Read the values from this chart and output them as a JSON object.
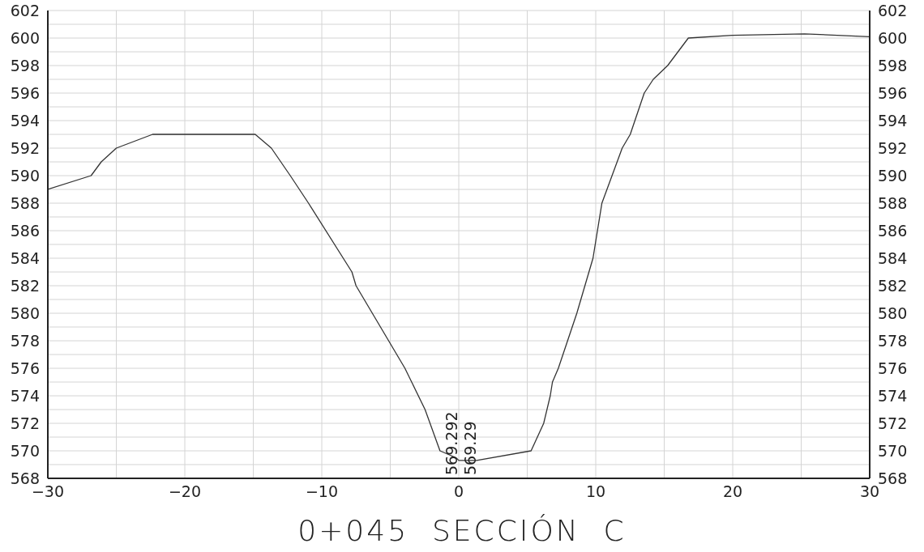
{
  "chart_data": {
    "type": "line",
    "title": "0+045  SECCIÓN  C",
    "x": [
      -30,
      -26.84,
      -26.1,
      -25,
      -22.35,
      -14.86,
      -13.68,
      -12.3,
      -10.97,
      -7.8,
      -7.5,
      -3.93,
      -2.46,
      -1.37,
      -0.2,
      0,
      1.3,
      5.28,
      6.2,
      6.68,
      6.84,
      7.27,
      8.62,
      9.8,
      10.45,
      11.93,
      12.52,
      13.54,
      14.2,
      15.25,
      16.76,
      19.96,
      25.25,
      30
    ],
    "series": [
      {
        "color": "#333333",
        "values": [
          589,
          590,
          591,
          592,
          593,
          593,
          592,
          590,
          588,
          583,
          582,
          576,
          573,
          570,
          569.5,
          569.3,
          569.3,
          570,
          572,
          574,
          575,
          576,
          580,
          584,
          588,
          592,
          593,
          596,
          597,
          598,
          600,
          600.2,
          600.3,
          600.1
        ]
      }
    ],
    "annotations": [
      "569.292",
      "569.29"
    ],
    "xlim": [
      -30,
      30
    ],
    "xticks": [
      {
        "value": -30,
        "label": "−30"
      },
      {
        "value": -25,
        "label": null
      },
      {
        "value": -20,
        "label": "−20"
      },
      {
        "value": -15,
        "label": null
      },
      {
        "value": -10,
        "label": "−10"
      },
      {
        "value": -5,
        "label": null
      },
      {
        "value": 0,
        "label": "0"
      },
      {
        "value": 5,
        "label": null
      },
      {
        "value": 10,
        "label": "10"
      },
      {
        "value": 15,
        "label": null
      },
      {
        "value": 20,
        "label": "20"
      },
      {
        "value": 25,
        "label": null
      },
      {
        "value": 30,
        "label": "30"
      }
    ],
    "ylim": [
      568,
      602
    ],
    "yticks": [
      568,
      {
        "value": 569,
        "label": null
      },
      570,
      {
        "value": 571,
        "label": null
      },
      572,
      {
        "value": 573,
        "label": null
      },
      574,
      {
        "value": 575,
        "label": null
      },
      576,
      {
        "value": 577,
        "label": null
      },
      578,
      {
        "value": 579,
        "label": null
      },
      580,
      {
        "value": 581,
        "label": null
      },
      582,
      {
        "value": 583,
        "label": null
      },
      584,
      {
        "value": 585,
        "label": null
      },
      586,
      {
        "value": 587,
        "label": null
      },
      588,
      {
        "value": 589,
        "label": null
      },
      590,
      {
        "value": 591,
        "label": null
      },
      592,
      {
        "value": 593,
        "label": null
      },
      594,
      {
        "value": 595,
        "label": null
      },
      596,
      {
        "value": 597,
        "label": null
      },
      598,
      {
        "value": 599,
        "label": null
      },
      600,
      {
        "value": 601,
        "label": null
      },
      602
    ],
    "y2lim": [
      568,
      602
    ],
    "y2ticks": [
      568,
      570,
      572,
      574,
      576,
      578,
      580,
      582,
      584,
      586,
      588,
      590,
      592,
      594,
      596,
      598,
      600,
      602
    ],
    "grid": true,
    "legend": false,
    "marker": "none",
    "line_style": "solid"
  }
}
